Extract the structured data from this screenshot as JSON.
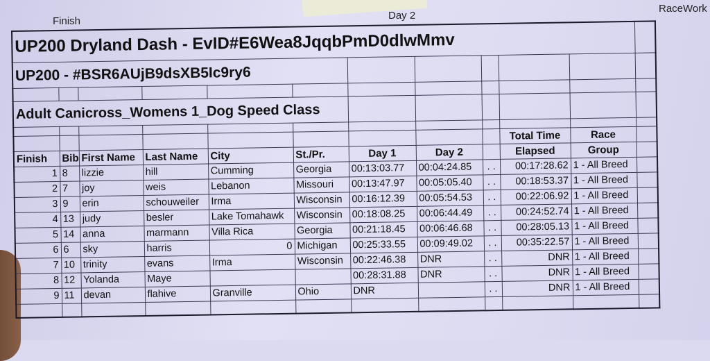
{
  "background_labels": {
    "left": "Finish",
    "center": "Day 2",
    "right": "RaceWork"
  },
  "sheet": {
    "title": "UP200 Dryland Dash - EvID#E6Wea8JqqbPmD0dlwMmv",
    "subtitle": "UP200 - #BSR6AUjB9dsXB5Ic9ry6",
    "class_name": "Adult Canicross_Womens 1_Dog Speed Class",
    "header_top": {
      "total": "Total Time",
      "group": "Race"
    },
    "columns": [
      "Finish",
      "Bib#",
      "First Name",
      "Last Name",
      "City",
      "St./Pr.",
      "Day 1",
      "Day 2",
      "",
      "Elapsed",
      "Group"
    ],
    "rows": [
      {
        "finish": "1",
        "bib": "8",
        "first": "lizzie",
        "last": "hill",
        "city": "Cumming",
        "state": "Georgia",
        "day1": "00:13:03.77",
        "day2": "00:04:24.85",
        "dots": ". .",
        "total": "00:17:28.62",
        "group": "1 - All Breed"
      },
      {
        "finish": "2",
        "bib": "7",
        "first": "joy",
        "last": "weis",
        "city": "Lebanon",
        "state": "Missouri",
        "day1": "00:13:47.97",
        "day2": "00:05:05.40",
        "dots": ". .",
        "total": "00:18:53.37",
        "group": "1 - All Breed"
      },
      {
        "finish": "3",
        "bib": "9",
        "first": "erin",
        "last": "schouweiler",
        "city": "Irma",
        "state": "Wisconsin",
        "day1": "00:16:12.39",
        "day2": "00:05:54.53",
        "dots": ". .",
        "total": "00:22:06.92",
        "group": "1 - All Breed"
      },
      {
        "finish": "4",
        "bib": "13",
        "first": "judy",
        "last": "besler",
        "city": "Lake Tomahawk",
        "state": "Wisconsin",
        "day1": "00:18:08.25",
        "day2": "00:06:44.49",
        "dots": ". .",
        "total": "00:24:52.74",
        "group": "1 - All Breed"
      },
      {
        "finish": "5",
        "bib": "14",
        "first": "anna",
        "last": "marmann",
        "city": "Villa Rica",
        "state": "Georgia",
        "day1": "00:21:18.45",
        "day2": "00:06:46.68",
        "dots": ". .",
        "total": "00:28:05.13",
        "group": "1 - All Breed"
      },
      {
        "finish": "6",
        "bib": "6",
        "first": "sky",
        "last": "harris",
        "city": "0",
        "state": "Michigan",
        "day1": "00:25:33.55",
        "day2": "00:09:49.02",
        "dots": ". .",
        "total": "00:35:22.57",
        "group": "1 - All Breed"
      },
      {
        "finish": "7",
        "bib": "10",
        "first": "trinity",
        "last": "evans",
        "city": "Irma",
        "state": "Wisconsin",
        "day1": "00:22:46.38",
        "day2": "DNR",
        "dots": ". .",
        "total": "DNR",
        "group": "1 - All Breed"
      },
      {
        "finish": "8",
        "bib": "12",
        "first": "Yolanda",
        "last": "Maye",
        "city": "",
        "state": "",
        "day1": "00:28:31.88",
        "day2": "DNR",
        "dots": ". .",
        "total": "DNR",
        "group": "1 - All Breed"
      },
      {
        "finish": "9",
        "bib": "11",
        "first": "devan",
        "last": "flahive",
        "city": "Granville",
        "state": "Ohio",
        "day1": "DNR",
        "day2": "",
        "dots": ". .",
        "total": "DNR",
        "group": "1 - All Breed"
      }
    ]
  }
}
